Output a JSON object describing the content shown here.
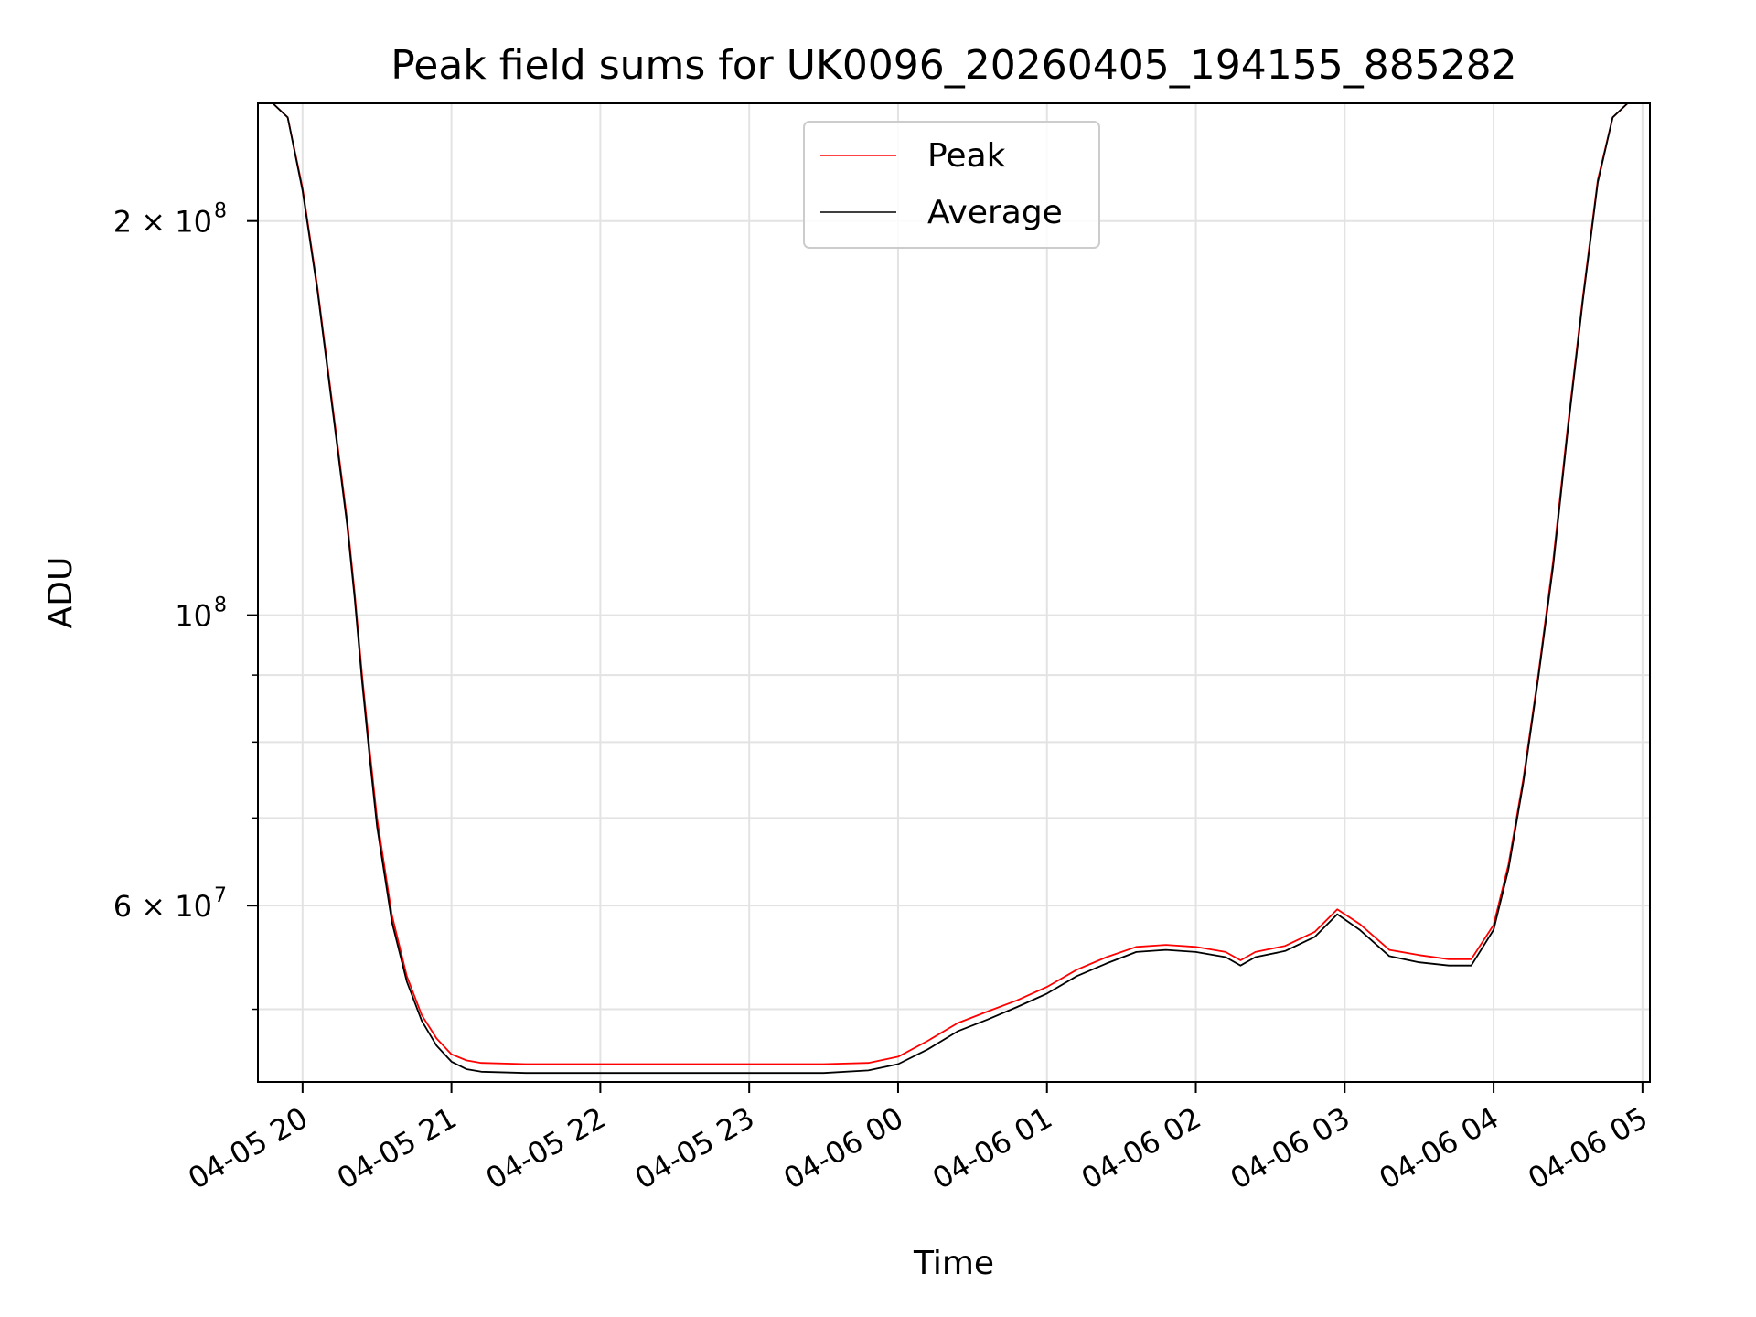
{
  "chart_data": {
    "type": "line",
    "title": "Peak field sums for UK0096_20260405_194155_885282",
    "xlabel": "Time",
    "ylabel": "ADU",
    "yscale": "log",
    "grid": true,
    "legend_position": "top-center",
    "x_unit": "hours since 04-05 20:00",
    "xlim": [
      -0.3,
      9.05
    ],
    "ylim": [
      44000000,
      246000000
    ],
    "x_ticks": [
      {
        "value": 0,
        "label": "04-05 20"
      },
      {
        "value": 1,
        "label": "04-05 21"
      },
      {
        "value": 2,
        "label": "04-05 22"
      },
      {
        "value": 3,
        "label": "04-05 23"
      },
      {
        "value": 4,
        "label": "04-06 00"
      },
      {
        "value": 5,
        "label": "04-06 01"
      },
      {
        "value": 6,
        "label": "04-06 02"
      },
      {
        "value": 7,
        "label": "04-06 03"
      },
      {
        "value": 8,
        "label": "04-06 04"
      },
      {
        "value": 9,
        "label": "04-06 05"
      }
    ],
    "y_ticks": [
      {
        "value": 200000000,
        "base": "2 × 10",
        "exp": "8"
      },
      {
        "value": 100000000,
        "base": "10",
        "exp": "8"
      },
      {
        "value": 60000000,
        "base": "6 × 10",
        "exp": "7"
      }
    ],
    "y_minor_gridlines": [
      50000000,
      70000000,
      80000000,
      90000000
    ],
    "series": [
      {
        "name": "Peak",
        "color": "#ff0000",
        "x": [
          -0.3,
          -0.2,
          -0.1,
          0.0,
          0.1,
          0.2,
          0.3,
          0.35,
          0.4,
          0.45,
          0.5,
          0.6,
          0.7,
          0.8,
          0.9,
          1.0,
          1.1,
          1.2,
          1.5,
          2.0,
          2.5,
          3.0,
          3.5,
          3.8,
          4.0,
          4.2,
          4.4,
          4.6,
          4.8,
          5.0,
          5.2,
          5.4,
          5.6,
          5.8,
          6.0,
          6.2,
          6.3,
          6.4,
          6.6,
          6.8,
          6.95,
          7.1,
          7.3,
          7.5,
          7.7,
          7.85,
          8.0,
          8.1,
          8.2,
          8.3,
          8.4,
          8.5,
          8.6,
          8.7,
          8.8,
          8.9,
          9.0
        ],
        "y": [
          246000000,
          246000000,
          240000000,
          212000000,
          178000000,
          145000000,
          118000000,
          104000000,
          90000000,
          79000000,
          70000000,
          59000000,
          53000000,
          49500000,
          47500000,
          46200000,
          45700000,
          45500000,
          45400000,
          45400000,
          45400000,
          45400000,
          45400000,
          45500000,
          46000000,
          47300000,
          48800000,
          49800000,
          50800000,
          52000000,
          53600000,
          54800000,
          55800000,
          56000000,
          55800000,
          55300000,
          54500000,
          55300000,
          55900000,
          57300000,
          59600000,
          58100000,
          55500000,
          55000000,
          54600000,
          54600000,
          58000000,
          64500000,
          75000000,
          90000000,
          110000000,
          140000000,
          175000000,
          215000000,
          240000000,
          246000000,
          246000000
        ]
      },
      {
        "name": "Average",
        "color": "#000000",
        "x": [
          -0.3,
          -0.2,
          -0.1,
          0.0,
          0.1,
          0.2,
          0.3,
          0.35,
          0.4,
          0.45,
          0.5,
          0.6,
          0.7,
          0.8,
          0.9,
          1.0,
          1.1,
          1.2,
          1.5,
          2.0,
          2.5,
          3.0,
          3.5,
          3.8,
          4.0,
          4.2,
          4.4,
          4.6,
          4.8,
          5.0,
          5.2,
          5.4,
          5.6,
          5.8,
          6.0,
          6.2,
          6.3,
          6.4,
          6.6,
          6.8,
          6.95,
          7.1,
          7.3,
          7.5,
          7.7,
          7.85,
          8.0,
          8.1,
          8.2,
          8.3,
          8.4,
          8.5,
          8.6,
          8.7,
          8.8,
          8.9,
          9.0
        ],
        "y": [
          246000000,
          246000000,
          240000000,
          211000000,
          177000000,
          144000000,
          117000000,
          103000000,
          89000000,
          78000000,
          69000000,
          58300000,
          52500000,
          49000000,
          46900000,
          45600000,
          45000000,
          44800000,
          44700000,
          44700000,
          44700000,
          44700000,
          44700000,
          44900000,
          45400000,
          46600000,
          48100000,
          49100000,
          50200000,
          51400000,
          53000000,
          54200000,
          55300000,
          55500000,
          55300000,
          54800000,
          54000000,
          54800000,
          55400000,
          56800000,
          59100000,
          57500000,
          54900000,
          54300000,
          54000000,
          54000000,
          57500000,
          64000000,
          74500000,
          89500000,
          109000000,
          139000000,
          174000000,
          214000000,
          240000000,
          246000000,
          246000000
        ]
      }
    ]
  }
}
